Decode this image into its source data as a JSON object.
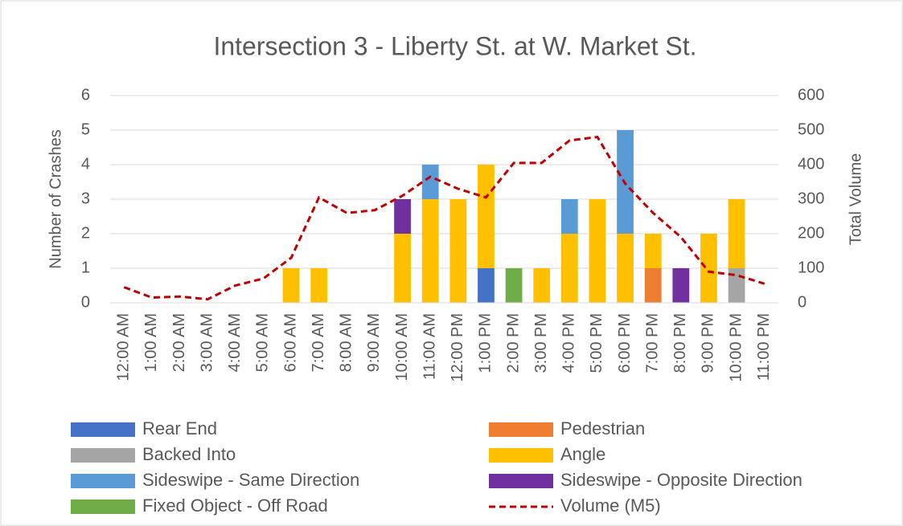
{
  "chart_data": {
    "type": "bar",
    "stacked": true,
    "title": "Intersection 3 - Liberty St. at W. Market St.",
    "y_label": "Number of Crashes",
    "y2_label": "Total Volume",
    "categories": [
      "12:00 AM",
      "1:00 AM",
      "2:00 AM",
      "3:00 AM",
      "4:00 AM",
      "5:00 AM",
      "6:00 AM",
      "7:00 AM",
      "8:00 AM",
      "9:00 AM",
      "10:00 AM",
      "11:00 AM",
      "12:00 PM",
      "1:00 PM",
      "2:00 PM",
      "3:00 PM",
      "4:00 PM",
      "5:00 PM",
      "6:00 PM",
      "7:00 PM",
      "8:00 PM",
      "9:00 PM",
      "10:00 PM",
      "11:00 PM"
    ],
    "series": [
      {
        "name": "Rear End",
        "color": "#4472c4",
        "values": [
          0,
          0,
          0,
          0,
          0,
          0,
          0,
          0,
          0,
          0,
          0,
          0,
          0,
          1,
          0,
          0,
          0,
          0,
          0,
          0,
          0,
          0,
          0,
          0
        ]
      },
      {
        "name": "Pedestrian",
        "color": "#ed7d31",
        "values": [
          0,
          0,
          0,
          0,
          0,
          0,
          0,
          0,
          0,
          0,
          0,
          0,
          0,
          0,
          0,
          0,
          0,
          0,
          0,
          1,
          0,
          0,
          0,
          0
        ]
      },
      {
        "name": "Backed Into",
        "color": "#a5a5a5",
        "values": [
          0,
          0,
          0,
          0,
          0,
          0,
          0,
          0,
          0,
          0,
          0,
          0,
          0,
          0,
          0,
          0,
          0,
          0,
          0,
          0,
          0,
          0,
          1,
          0
        ]
      },
      {
        "name": "Angle",
        "color": "#ffc000",
        "values": [
          0,
          0,
          0,
          0,
          0,
          0,
          1,
          1,
          0,
          0,
          2,
          3,
          3,
          3,
          0,
          1,
          2,
          3,
          2,
          1,
          0,
          2,
          2,
          0
        ]
      },
      {
        "name": "Sideswipe - Same Direction",
        "color": "#5b9bd5",
        "values": [
          0,
          0,
          0,
          0,
          0,
          0,
          0,
          0,
          0,
          0,
          0,
          1,
          0,
          0,
          0,
          0,
          1,
          0,
          3,
          0,
          0,
          0,
          0,
          0
        ]
      },
      {
        "name": "Sideswipe - Opposite Direction",
        "color": "#7030a0",
        "values": [
          0,
          0,
          0,
          0,
          0,
          0,
          0,
          0,
          0,
          0,
          1,
          0,
          0,
          0,
          0,
          0,
          0,
          0,
          0,
          0,
          1,
          0,
          0,
          0
        ]
      },
      {
        "name": "Fixed Object - Off Road",
        "color": "#70ad47",
        "values": [
          0,
          0,
          0,
          0,
          0,
          0,
          0,
          0,
          0,
          0,
          0,
          0,
          0,
          0,
          1,
          0,
          0,
          0,
          0,
          0,
          0,
          0,
          0,
          0
        ]
      },
      {
        "name": "Volume (M5)",
        "color": "#c00000",
        "type": "line",
        "dashed": true,
        "axis": "y2",
        "values": [
          45,
          15,
          18,
          10,
          50,
          70,
          130,
          305,
          260,
          268,
          310,
          365,
          330,
          305,
          405,
          405,
          470,
          480,
          345,
          260,
          190,
          90,
          80,
          55
        ]
      }
    ],
    "ylim": [
      0,
      6
    ],
    "yticks": [
      0,
      1,
      2,
      3,
      4,
      5,
      6
    ],
    "y2lim": [
      0,
      600
    ],
    "y2ticks": [
      0,
      100,
      200,
      300,
      400,
      500,
      600
    ],
    "grid": true,
    "legend": "bottom"
  }
}
